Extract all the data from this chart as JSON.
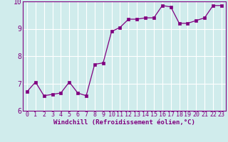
{
  "x": [
    0,
    1,
    2,
    3,
    4,
    5,
    6,
    7,
    8,
    9,
    10,
    11,
    12,
    13,
    14,
    15,
    16,
    17,
    18,
    19,
    20,
    21,
    22,
    23
  ],
  "y": [
    6.7,
    7.05,
    6.55,
    6.6,
    6.65,
    7.05,
    6.65,
    6.55,
    7.7,
    7.75,
    8.9,
    9.05,
    9.35,
    9.35,
    9.4,
    9.4,
    9.85,
    9.8,
    9.2,
    9.2,
    9.3,
    9.4,
    9.85,
    9.85
  ],
  "xlabel": "Windchill (Refroidissement éolien,°C)",
  "ylim": [
    6,
    10
  ],
  "xlim": [
    -0.5,
    23.5
  ],
  "yticks": [
    6,
    7,
    8,
    9,
    10
  ],
  "ytick_labels": [
    "6",
    "7",
    "8",
    "9",
    "10"
  ],
  "xticks": [
    0,
    1,
    2,
    3,
    4,
    5,
    6,
    7,
    8,
    9,
    10,
    11,
    12,
    13,
    14,
    15,
    16,
    17,
    18,
    19,
    20,
    21,
    22,
    23
  ],
  "line_color": "#800080",
  "marker": "s",
  "marker_size": 2.2,
  "bg_color": "#d0ecec",
  "grid_color": "#ffffff",
  "tick_color": "#800080",
  "label_color": "#800080",
  "spine_color": "#800080",
  "font_family": "monospace",
  "tick_fontsize": 6.0,
  "xlabel_fontsize": 6.5,
  "ytick_fontsize": 7.0
}
